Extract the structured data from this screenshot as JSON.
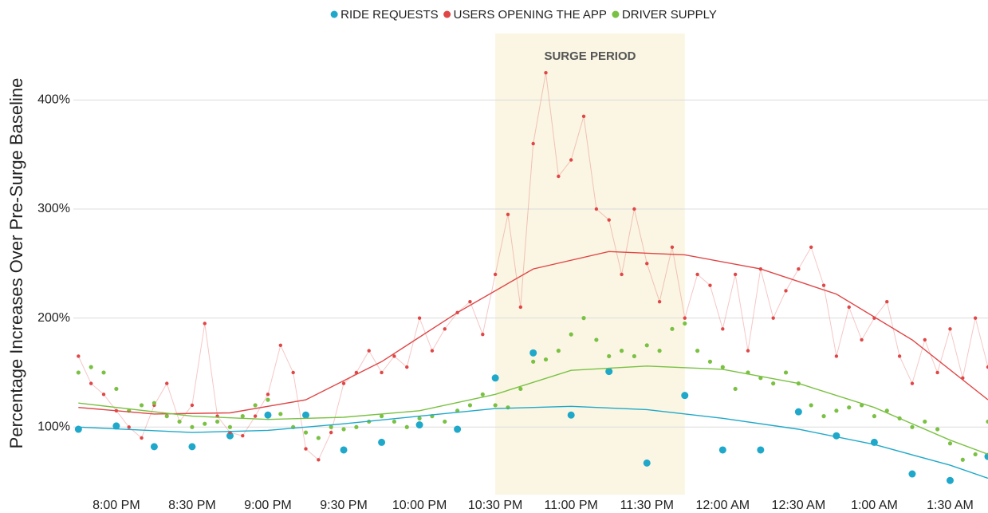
{
  "chart_data": {
    "type": "scatter",
    "y_label": "Percentage Increases Over Pre-Surge Baseline",
    "xlim": [
      "7:43 PM",
      "1:45 AM"
    ],
    "xticks": [
      "8:00 PM",
      "8:30 PM",
      "9:00 PM",
      "9:30 PM",
      "10:00 PM",
      "10:30 PM",
      "11:00 PM",
      "11:30 PM",
      "12:00 AM",
      "12:30 AM",
      "1:00 AM",
      "1:30 AM"
    ],
    "ylim": [
      38,
      461
    ],
    "yticks": [
      {
        "value": 100,
        "label": "100%"
      },
      {
        "value": 200,
        "label": "200%"
      },
      {
        "value": 300,
        "label": "300%"
      },
      {
        "value": 400,
        "label": "400%"
      }
    ],
    "grid": true,
    "legend": "top",
    "annotation": {
      "label": "SURGE PERIOD",
      "start": "10:30 PM",
      "end": "11:45 PM",
      "color": "#faf6e3"
    },
    "series": [
      {
        "name": "RIDE REQUESTS",
        "color": "#1fa8c9",
        "line": false,
        "x": [
          "7:45 PM",
          "8:00 PM",
          "8:15 PM",
          "8:30 PM",
          "8:45 PM",
          "9:00 PM",
          "9:15 PM",
          "9:30 PM",
          "9:45 PM",
          "10:00 PM",
          "10:15 PM",
          "10:30 PM",
          "10:45 PM",
          "11:00 PM",
          "11:15 PM",
          "11:30 PM",
          "11:45 PM",
          "12:00 AM",
          "12:15 AM",
          "12:30 AM",
          "12:45 AM",
          "1:00 AM",
          "1:15 AM",
          "1:30 AM",
          "1:45 AM"
        ],
        "values": [
          98,
          101,
          82,
          82,
          92,
          111,
          111,
          79,
          86,
          102,
          98,
          145,
          168,
          111,
          151,
          67,
          129,
          79,
          79,
          114,
          92,
          86,
          57,
          51,
          73
        ],
        "trend": {
          "x": [
            "7:45 PM",
            "8:30 PM",
            "9:00 PM",
            "9:30 PM",
            "10:00 PM",
            "10:30 PM",
            "11:00 PM",
            "11:30 PM",
            "12:00 AM",
            "12:30 AM",
            "1:00 AM",
            "1:30 AM",
            "1:45 AM"
          ],
          "values": [
            100,
            95,
            97,
            103,
            110,
            117,
            119,
            116,
            108,
            98,
            84,
            65,
            53
          ]
        }
      },
      {
        "name": "USERS OPENING THE APP",
        "color": "#e04646",
        "line": true,
        "x": [
          "7:45 PM",
          "7:50 PM",
          "7:55 PM",
          "8:00 PM",
          "8:05 PM",
          "8:10 PM",
          "8:15 PM",
          "8:20 PM",
          "8:25 PM",
          "8:30 PM",
          "8:35 PM",
          "8:40 PM",
          "8:45 PM",
          "8:50 PM",
          "8:55 PM",
          "9:00 PM",
          "9:05 PM",
          "9:10 PM",
          "9:15 PM",
          "9:20 PM",
          "9:25 PM",
          "9:30 PM",
          "9:35 PM",
          "9:40 PM",
          "9:45 PM",
          "9:50 PM",
          "9:55 PM",
          "10:00 PM",
          "10:05 PM",
          "10:10 PM",
          "10:15 PM",
          "10:20 PM",
          "10:25 PM",
          "10:30 PM",
          "10:35 PM",
          "10:40 PM",
          "10:45 PM",
          "10:50 PM",
          "10:55 PM",
          "11:00 PM",
          "11:05 PM",
          "11:10 PM",
          "11:15 PM",
          "11:20 PM",
          "11:25 PM",
          "11:30 PM",
          "11:35 PM",
          "11:40 PM",
          "11:45 PM",
          "11:50 PM",
          "11:55 PM",
          "12:00 AM",
          "12:05 AM",
          "12:10 AM",
          "12:15 AM",
          "12:20 AM",
          "12:25 AM",
          "12:30 AM",
          "12:35 AM",
          "12:40 AM",
          "12:45 AM",
          "12:50 AM",
          "12:55 AM",
          "1:00 AM",
          "1:05 AM",
          "1:10 AM",
          "1:15 AM",
          "1:20 AM",
          "1:25 AM",
          "1:30 AM",
          "1:35 AM",
          "1:40 AM",
          "1:45 AM"
        ],
        "values": [
          165,
          140,
          130,
          115,
          100,
          90,
          120,
          140,
          105,
          120,
          195,
          110,
          95,
          92,
          110,
          130,
          175,
          150,
          80,
          70,
          95,
          140,
          150,
          170,
          150,
          165,
          155,
          200,
          170,
          190,
          205,
          215,
          185,
          240,
          295,
          210,
          360,
          425,
          330,
          345,
          385,
          300,
          290,
          240,
          300,
          250,
          215,
          265,
          200,
          240,
          230,
          190,
          240,
          170,
          245,
          200,
          225,
          245,
          265,
          230,
          165,
          210,
          180,
          200,
          215,
          165,
          140,
          180,
          150,
          190,
          145,
          200,
          155
        ],
        "trend": {
          "x": [
            "7:45 PM",
            "8:15 PM",
            "8:45 PM",
            "9:15 PM",
            "9:45 PM",
            "10:15 PM",
            "10:45 PM",
            "11:15 PM",
            "11:45 PM",
            "12:15 AM",
            "12:45 AM",
            "1:15 AM",
            "1:45 AM"
          ],
          "values": [
            118,
            112,
            113,
            125,
            160,
            205,
            245,
            261,
            258,
            245,
            222,
            180,
            125
          ]
        }
      },
      {
        "name": "DRIVER SUPPLY",
        "color": "#7ac143",
        "line": false,
        "x": [
          "7:45 PM",
          "7:50 PM",
          "7:55 PM",
          "8:00 PM",
          "8:05 PM",
          "8:10 PM",
          "8:15 PM",
          "8:20 PM",
          "8:25 PM",
          "8:30 PM",
          "8:35 PM",
          "8:40 PM",
          "8:45 PM",
          "8:50 PM",
          "8:55 PM",
          "9:00 PM",
          "9:05 PM",
          "9:10 PM",
          "9:15 PM",
          "9:20 PM",
          "9:25 PM",
          "9:30 PM",
          "9:35 PM",
          "9:40 PM",
          "9:45 PM",
          "9:50 PM",
          "9:55 PM",
          "10:00 PM",
          "10:05 PM",
          "10:10 PM",
          "10:15 PM",
          "10:20 PM",
          "10:25 PM",
          "10:30 PM",
          "10:35 PM",
          "10:40 PM",
          "10:45 PM",
          "10:50 PM",
          "10:55 PM",
          "11:00 PM",
          "11:05 PM",
          "11:10 PM",
          "11:15 PM",
          "11:20 PM",
          "11:25 PM",
          "11:30 PM",
          "11:35 PM",
          "11:40 PM",
          "11:45 PM",
          "11:50 PM",
          "11:55 PM",
          "12:00 AM",
          "12:05 AM",
          "12:10 AM",
          "12:15 AM",
          "12:20 AM",
          "12:25 AM",
          "12:30 AM",
          "12:35 AM",
          "12:40 AM",
          "12:45 AM",
          "12:50 AM",
          "12:55 AM",
          "1:00 AM",
          "1:05 AM",
          "1:10 AM",
          "1:15 AM",
          "1:20 AM",
          "1:25 AM",
          "1:30 AM",
          "1:35 AM",
          "1:40 AM",
          "1:45 AM"
        ],
        "values": [
          150,
          155,
          150,
          135,
          115,
          120,
          122,
          110,
          105,
          100,
          103,
          105,
          100,
          110,
          120,
          125,
          112,
          100,
          95,
          90,
          100,
          98,
          100,
          105,
          110,
          105,
          100,
          108,
          110,
          105,
          115,
          120,
          130,
          120,
          118,
          135,
          160,
          162,
          170,
          185,
          200,
          180,
          165,
          170,
          165,
          175,
          170,
          190,
          195,
          170,
          160,
          155,
          135,
          150,
          145,
          140,
          150,
          140,
          120,
          110,
          115,
          118,
          120,
          110,
          115,
          108,
          100,
          105,
          98,
          85,
          70,
          75,
          105
        ],
        "trend": {
          "x": [
            "7:45 PM",
            "8:30 PM",
            "9:00 PM",
            "9:30 PM",
            "10:00 PM",
            "10:30 PM",
            "11:00 PM",
            "11:30 PM",
            "12:00 AM",
            "12:30 AM",
            "1:00 AM",
            "1:30 AM",
            "1:45 AM"
          ],
          "values": [
            122,
            110,
            107,
            109,
            115,
            130,
            152,
            156,
            153,
            140,
            118,
            88,
            75
          ]
        }
      }
    ]
  }
}
